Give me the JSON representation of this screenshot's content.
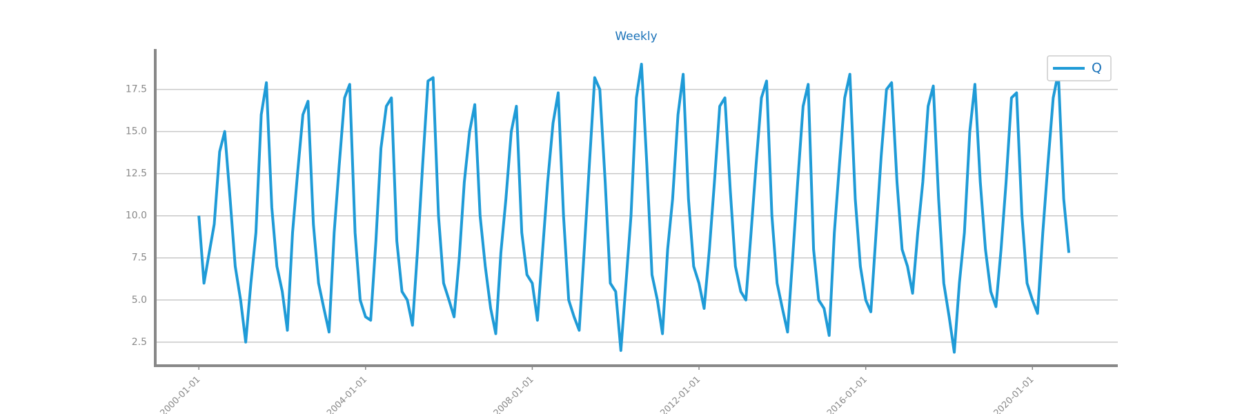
{
  "chart_data": {
    "type": "line",
    "title": "Weekly",
    "x": [
      "2000-01-01",
      "2000-02-15",
      "2000-04-01",
      "2000-05-15",
      "2000-07-01",
      "2000-08-15",
      "2000-10-01",
      "2000-11-15",
      "2001-01-01",
      "2001-02-15",
      "2001-04-01",
      "2001-05-15",
      "2001-07-01",
      "2001-08-15",
      "2001-10-01",
      "2001-11-15",
      "2002-01-01",
      "2002-02-15",
      "2002-04-01",
      "2002-05-15",
      "2002-07-01",
      "2002-08-15",
      "2002-10-01",
      "2002-11-15",
      "2003-01-01",
      "2003-02-15",
      "2003-04-01",
      "2003-05-15",
      "2003-07-01",
      "2003-08-15",
      "2003-10-01",
      "2003-11-15",
      "2004-01-01",
      "2004-02-15",
      "2004-04-01",
      "2004-05-15",
      "2004-07-01",
      "2004-08-15",
      "2004-10-01",
      "2004-11-15",
      "2005-01-01",
      "2005-02-15",
      "2005-04-01",
      "2005-05-15",
      "2005-07-01",
      "2005-08-15",
      "2005-10-01",
      "2005-11-15",
      "2006-01-01",
      "2006-02-15",
      "2006-04-01",
      "2006-05-15",
      "2006-07-01",
      "2006-08-15",
      "2006-10-01",
      "2006-11-15",
      "2007-01-01",
      "2007-02-15",
      "2007-04-01",
      "2007-05-15",
      "2007-07-01",
      "2007-08-15",
      "2007-10-01",
      "2007-11-15",
      "2008-01-01",
      "2008-02-15",
      "2008-04-01",
      "2008-05-15",
      "2008-07-01",
      "2008-08-15",
      "2008-10-01",
      "2008-11-15",
      "2009-01-01",
      "2009-02-15",
      "2009-04-01",
      "2009-05-15",
      "2009-07-01",
      "2009-08-15",
      "2009-10-01",
      "2009-11-15",
      "2010-01-01",
      "2010-02-15",
      "2010-04-01",
      "2010-05-15",
      "2010-07-01",
      "2010-08-15",
      "2010-10-01",
      "2010-11-15",
      "2011-01-01",
      "2011-02-15",
      "2011-04-01",
      "2011-05-15",
      "2011-07-01",
      "2011-08-15",
      "2011-10-01",
      "2011-11-15",
      "2012-01-01",
      "2012-02-15",
      "2012-04-01",
      "2012-05-15",
      "2012-07-01",
      "2012-08-15",
      "2012-10-01",
      "2012-11-15",
      "2013-01-01",
      "2013-02-15",
      "2013-04-01",
      "2013-05-15",
      "2013-07-01",
      "2013-08-15",
      "2013-10-01",
      "2013-11-15",
      "2014-01-01",
      "2014-02-15",
      "2014-04-01",
      "2014-05-15",
      "2014-07-01",
      "2014-08-15",
      "2014-10-01",
      "2014-11-15",
      "2015-01-01",
      "2015-02-15",
      "2015-04-01",
      "2015-05-15",
      "2015-07-01",
      "2015-08-15",
      "2015-10-01",
      "2015-11-15",
      "2016-01-01",
      "2016-02-15",
      "2016-04-01",
      "2016-05-15",
      "2016-07-01",
      "2016-08-15",
      "2016-10-01",
      "2016-11-15",
      "2017-01-01",
      "2017-02-15",
      "2017-04-01",
      "2017-05-15",
      "2017-07-01",
      "2017-08-15",
      "2017-10-01",
      "2017-11-15",
      "2018-01-01",
      "2018-02-15",
      "2018-04-01",
      "2018-05-15",
      "2018-07-01",
      "2018-08-15",
      "2018-10-01",
      "2018-11-15",
      "2019-01-01",
      "2019-02-15",
      "2019-04-01",
      "2019-05-15",
      "2019-07-01",
      "2019-08-15",
      "2019-10-01",
      "2019-11-15",
      "2020-01-01",
      "2020-02-15",
      "2020-04-01",
      "2020-05-15",
      "2020-07-01",
      "2020-08-15",
      "2020-10-01",
      "2020-11-15"
    ],
    "series": [
      {
        "name": "Q",
        "color": "#1f9bd7",
        "values": [
          10.0,
          6.0,
          7.8,
          9.5,
          13.8,
          15.0,
          11.0,
          7.0,
          5.0,
          2.5,
          6.0,
          9.0,
          16.0,
          17.9,
          10.5,
          7.0,
          5.5,
          3.2,
          9.0,
          12.5,
          16.0,
          16.8,
          9.5,
          6.0,
          4.5,
          3.1,
          9.0,
          13.0,
          17.0,
          17.8,
          9.0,
          5.0,
          4.0,
          3.8,
          8.5,
          14.0,
          16.5,
          17.0,
          8.5,
          5.5,
          5.0,
          3.5,
          8.0,
          13.0,
          18.0,
          18.2,
          10.0,
          6.0,
          5.0,
          4.0,
          7.5,
          12.0,
          15.0,
          16.6,
          10.0,
          7.0,
          4.5,
          3.0,
          7.8,
          11.0,
          15.0,
          16.5,
          9.0,
          6.5,
          6.0,
          3.8,
          8.0,
          12.0,
          15.5,
          17.3,
          10.0,
          5.0,
          4.0,
          3.2,
          8.0,
          13.0,
          18.2,
          17.5,
          12.0,
          6.0,
          5.5,
          2.0,
          6.0,
          10.0,
          17.0,
          19.0,
          13.0,
          6.5,
          5.0,
          3.0,
          8.0,
          11.0,
          16.0,
          18.4,
          11.0,
          7.0,
          6.0,
          4.5,
          8.0,
          12.0,
          16.5,
          17.0,
          11.5,
          7.0,
          5.5,
          5.0,
          9.0,
          13.0,
          17.0,
          18.0,
          10.0,
          6.0,
          4.5,
          3.1,
          7.5,
          12.0,
          16.5,
          17.8,
          8.0,
          5.0,
          4.5,
          2.9,
          9.0,
          13.0,
          17.0,
          18.4,
          11.0,
          7.0,
          5.0,
          4.3,
          9.0,
          13.5,
          17.5,
          17.9,
          12.0,
          8.0,
          7.0,
          5.4,
          9.0,
          12.0,
          16.5,
          17.7,
          11.0,
          6.0,
          4.0,
          1.9,
          6.0,
          9.0,
          15.0,
          17.8,
          12.0,
          8.0,
          5.5,
          4.6,
          8.0,
          12.0,
          17.0,
          17.3,
          10.0,
          6.0,
          5.0,
          4.2,
          9.0,
          13.0,
          17.0,
          18.5,
          11.0,
          7.8
        ]
      }
    ],
    "xlim": [
      "1998-12-15",
      "2022-01-18"
    ],
    "xticks": [
      "2000-01-01",
      "2004-01-01",
      "2008-01-01",
      "2012-01-01",
      "2016-01-01",
      "2020-01-01"
    ],
    "ylim": [
      1.1,
      19.9
    ],
    "yticks": [
      2.5,
      {
        "value": 5,
        "label": "5.0"
      },
      7.5,
      {
        "value": 10,
        "label": "10.0"
      },
      12.5,
      {
        "value": 15,
        "label": "15.0"
      },
      17.5
    ],
    "grid": true,
    "legend": "upper right"
  }
}
